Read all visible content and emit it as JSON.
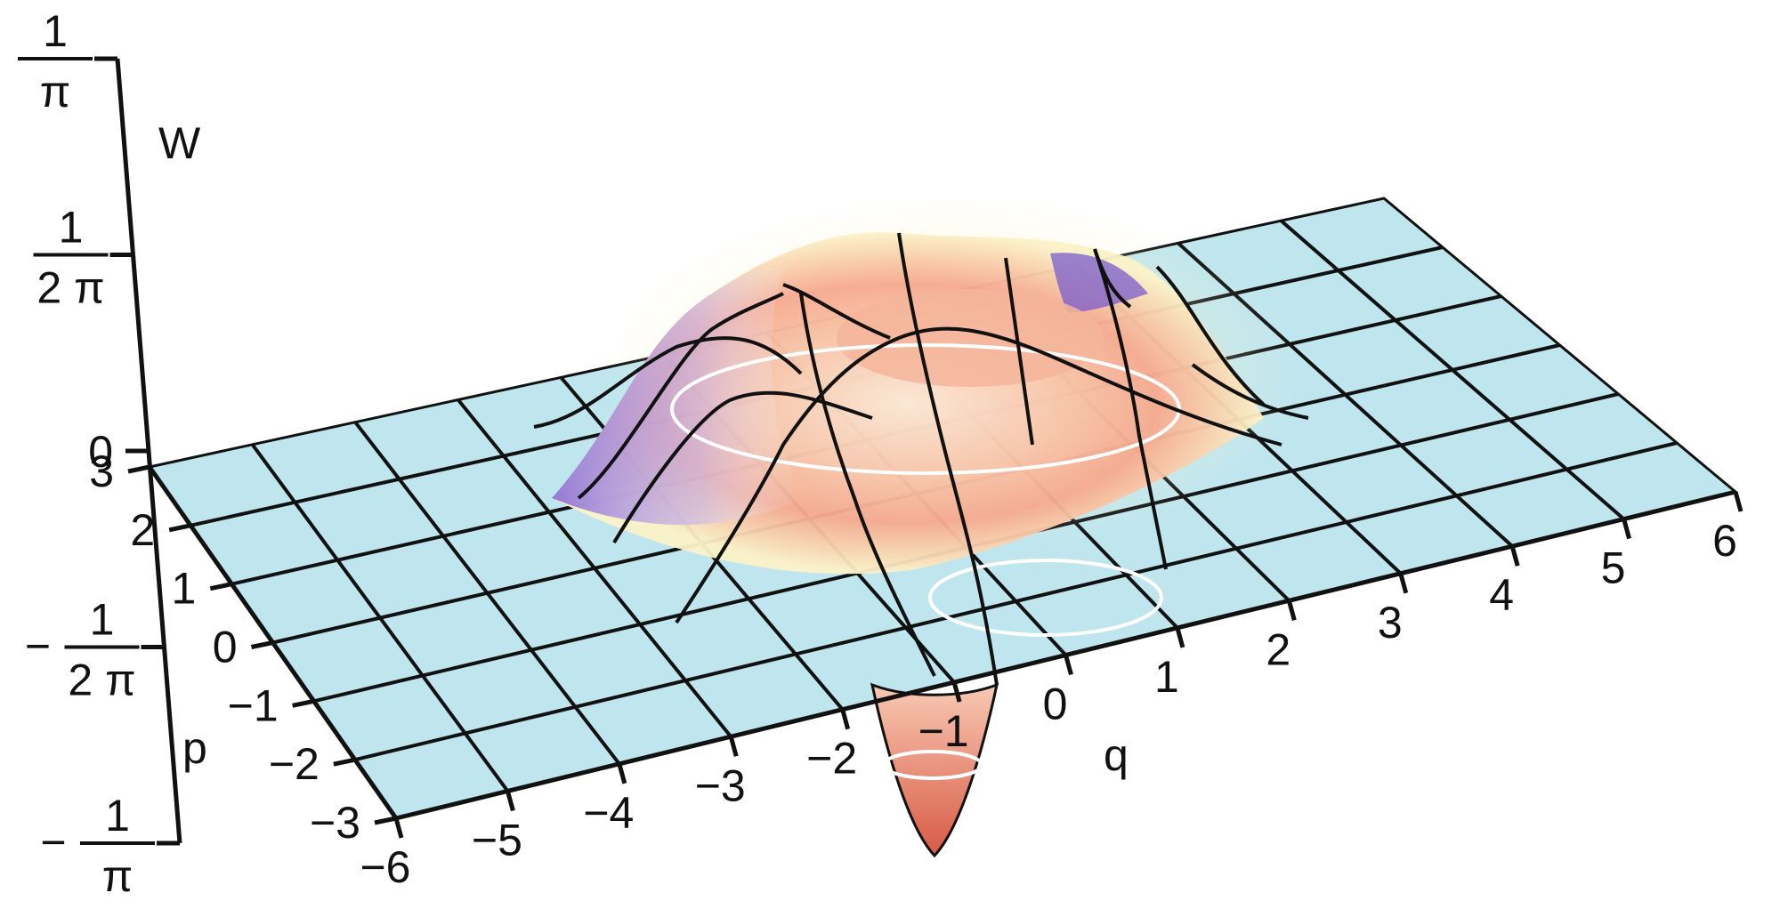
{
  "chart_data": {
    "type": "surface3d",
    "title": "",
    "xlabel": "q",
    "ylabel": "p",
    "zlabel": "W",
    "xlim": [
      -6,
      6
    ],
    "ylim": [
      -3,
      3
    ],
    "x_ticks": [
      "−6",
      "−5",
      "−4",
      "−3",
      "−2",
      "−1",
      "0",
      "1",
      "2",
      "3",
      "4",
      "5",
      "6"
    ],
    "y_ticks": [
      "−3",
      "−2",
      "−1",
      "0",
      "1",
      "2",
      "3"
    ],
    "z_ticks": [
      {
        "value": "-1/pi",
        "sign": "−",
        "num": "1",
        "den": "π"
      },
      {
        "value": "-1/(2pi)",
        "sign": "−",
        "num": "1",
        "den": "2 π"
      },
      {
        "value": "0",
        "sign": "",
        "num": "0",
        "den": ""
      },
      {
        "value": "1/(2pi)",
        "sign": "",
        "num": "1",
        "den": "2 π"
      },
      {
        "value": "1/pi",
        "sign": "",
        "num": "1",
        "den": "π"
      }
    ],
    "surface": {
      "description": "Wigner quasiprobability ring with a negative dip",
      "ring_center": [
        0,
        0
      ],
      "ring_radius": 1.9,
      "peak_value": 0.13,
      "dip_center": [
        -1.8,
        -2.5
      ],
      "dip_value": -0.28
    },
    "colors": {
      "floor": "#bfe6ef",
      "grid": "#111111",
      "contour": "#ffffff",
      "surface_warm": "#f6a98e",
      "surface_cool": "#8a6cd6",
      "surface_light": "#fbf2c8",
      "dip": "#e9785e"
    }
  }
}
